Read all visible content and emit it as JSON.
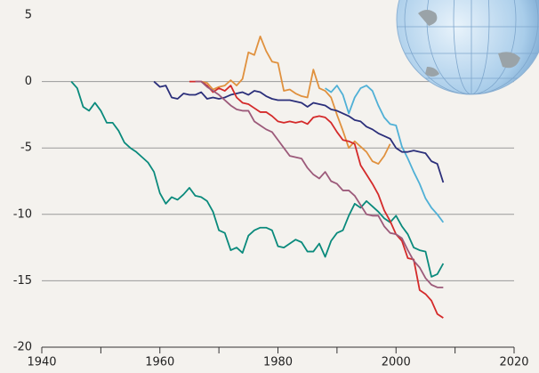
{
  "chart_data": {
    "type": "line",
    "x": [
      1945,
      1946,
      1947,
      1948,
      1949,
      1950,
      1951,
      1952,
      1953,
      1954,
      1955,
      1956,
      1957,
      1958,
      1959,
      1960,
      1961,
      1962,
      1963,
      1964,
      1965,
      1966,
      1967,
      1968,
      1969,
      1970,
      1971,
      1972,
      1973,
      1974,
      1975,
      1976,
      1977,
      1978,
      1979,
      1980,
      1981,
      1982,
      1983,
      1984,
      1985,
      1986,
      1987,
      1988,
      1989,
      1990,
      1991,
      1992,
      1993,
      1994,
      1995,
      1996,
      1997,
      1998,
      1999,
      2000,
      2001,
      2002,
      2003,
      2004,
      2005,
      2006,
      2007,
      2008
    ],
    "series": [
      {
        "color": "#0a8a7c",
        "values": [
          0,
          -0.5,
          -1.9,
          -2.2,
          -1.6,
          -2.2,
          -3.1,
          -3.1,
          -3.7,
          -4.6,
          -5.0,
          -5.3,
          -5.7,
          -6.1,
          -6.8,
          -8.4,
          -9.2,
          -8.7,
          -8.9,
          -8.5,
          -8.0,
          -8.6,
          -8.7,
          -9.0,
          -9.8,
          -11.2,
          -11.4,
          -12.7,
          -12.5,
          -12.9,
          -11.6,
          -11.2,
          -11.0,
          -11.0,
          -11.2,
          -12.4,
          -12.5,
          -12.2,
          -11.9,
          -12.1,
          -12.8,
          -12.8,
          -12.2,
          -13.2,
          -12.0,
          -11.4,
          -11.2,
          -10.1,
          -9.2,
          -9.5,
          -9.0,
          -9.4,
          -9.8,
          -10.3,
          -10.6,
          -10.1,
          -10.9,
          -11.5,
          -12.5,
          -12.7,
          -12.8,
          -14.7,
          -14.5,
          -13.7
        ]
      },
      {
        "color": "#e0913e",
        "values": [
          null,
          null,
          null,
          null,
          null,
          null,
          null,
          null,
          null,
          null,
          null,
          null,
          null,
          null,
          null,
          null,
          null,
          null,
          null,
          null,
          null,
          null,
          0,
          -0.1,
          -0.6,
          -0.4,
          -0.3,
          0.1,
          -0.3,
          0.2,
          2.2,
          2.0,
          3.4,
          2.3,
          1.5,
          1.4,
          -0.7,
          -0.6,
          -0.9,
          -1.1,
          -1.2,
          0.9,
          -0.5,
          -0.7,
          -1.2,
          -2.5,
          -3.7,
          -5.0,
          -4.5,
          -4.9,
          -5.3,
          -6.0,
          -6.2,
          -5.6,
          -4.7,
          null,
          null,
          null,
          null,
          null,
          null,
          null,
          null,
          null
        ]
      },
      {
        "color": "#4fb0d6",
        "values": [
          null,
          null,
          null,
          null,
          null,
          null,
          null,
          null,
          null,
          null,
          null,
          null,
          null,
          null,
          null,
          null,
          null,
          null,
          null,
          null,
          null,
          null,
          null,
          null,
          null,
          null,
          null,
          null,
          null,
          null,
          null,
          null,
          null,
          null,
          null,
          null,
          null,
          null,
          null,
          null,
          null,
          null,
          null,
          -0.5,
          -0.8,
          -0.3,
          -1.0,
          -2.4,
          -1.2,
          -0.5,
          -0.3,
          -0.7,
          -1.8,
          -2.7,
          -3.2,
          -3.3,
          -4.9,
          -5.8,
          -6.8,
          -7.7,
          -8.8,
          -9.5,
          -10.0,
          -10.6
        ]
      },
      {
        "color": "#2b2f7a",
        "values": [
          null,
          null,
          null,
          null,
          null,
          null,
          null,
          null,
          null,
          null,
          null,
          null,
          null,
          null,
          0,
          -0.4,
          -0.3,
          -1.2,
          -1.3,
          -0.9,
          -1.0,
          -1.0,
          -0.8,
          -1.3,
          -1.2,
          -1.3,
          -1.2,
          -1.0,
          -0.9,
          -0.8,
          -1.0,
          -0.7,
          -0.8,
          -1.1,
          -1.3,
          -1.4,
          -1.4,
          -1.4,
          -1.5,
          -1.6,
          -1.9,
          -1.6,
          -1.7,
          -1.8,
          -2.1,
          -2.2,
          -2.4,
          -2.6,
          -2.9,
          -3.0,
          -3.4,
          -3.6,
          -3.9,
          -4.1,
          -4.3,
          -5.0,
          -5.3,
          -5.3,
          -5.2,
          -5.3,
          -5.4,
          -6.0,
          -6.2,
          -7.6
        ]
      },
      {
        "color": "#d42a2a",
        "values": [
          null,
          null,
          null,
          null,
          null,
          null,
          null,
          null,
          null,
          null,
          null,
          null,
          null,
          null,
          null,
          null,
          null,
          null,
          null,
          null,
          0,
          0,
          0,
          -0.3,
          -0.8,
          -0.5,
          -0.7,
          -0.3,
          -1.2,
          -1.6,
          -1.7,
          -2.0,
          -2.3,
          -2.3,
          -2.6,
          -3.0,
          -3.1,
          -3.0,
          -3.1,
          -3.0,
          -3.2,
          -2.7,
          -2.6,
          -2.7,
          -3.1,
          -3.8,
          -4.4,
          -4.5,
          -4.7,
          -6.3,
          -7.0,
          -7.7,
          -8.5,
          -9.7,
          -10.5,
          -11.5,
          -12.0,
          -13.3,
          -13.4,
          -15.7,
          -16.0,
          -16.5,
          -17.5,
          -17.8
        ]
      },
      {
        "color": "#9c5a7a",
        "values": [
          null,
          null,
          null,
          null,
          null,
          null,
          null,
          null,
          null,
          null,
          null,
          null,
          null,
          null,
          null,
          null,
          null,
          null,
          null,
          null,
          null,
          0,
          0,
          -0.4,
          -0.7,
          -1.0,
          -1.4,
          -1.8,
          -2.1,
          -2.2,
          -2.2,
          -3.0,
          -3.3,
          -3.6,
          -3.8,
          -4.4,
          -5.0,
          -5.6,
          -5.7,
          -5.8,
          -6.5,
          -7.0,
          -7.3,
          -6.8,
          -7.5,
          -7.7,
          -8.2,
          -8.2,
          -8.6,
          -9.3,
          -10.0,
          -10.1,
          -10.1,
          -10.9,
          -11.4,
          -11.5,
          -11.8,
          -12.7,
          -13.5,
          -14.0,
          -14.8,
          -15.3,
          -15.5,
          -15.5
        ]
      }
    ],
    "xlim": [
      1940,
      2020
    ],
    "xticks": [
      1940,
      1960,
      1980,
      2000,
      2020
    ],
    "xminorticks": [
      1950,
      1970,
      1990,
      2010
    ],
    "ylim": [
      -20,
      5
    ],
    "yticks": [
      5,
      0,
      -5,
      -10,
      -15,
      -20
    ],
    "grid": true
  }
}
